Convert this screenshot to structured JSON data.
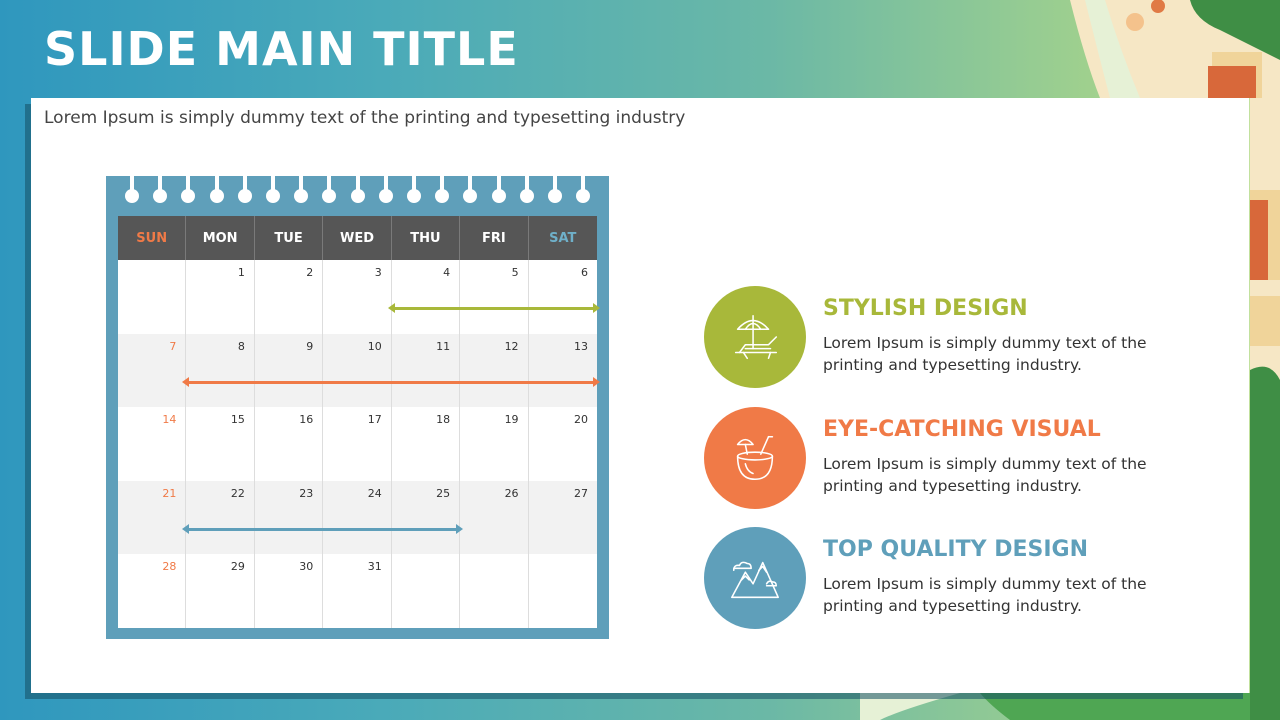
{
  "slide": {
    "title": "SLIDE MAIN TITLE",
    "subtitle": "Lorem Ipsum is simply dummy text of the printing and typesetting industry"
  },
  "calendar": {
    "days": [
      "SUN",
      "MON",
      "TUE",
      "WED",
      "THU",
      "FRI",
      "SAT"
    ],
    "weeks": [
      [
        "",
        "1",
        "2",
        "3",
        "4",
        "5",
        "6"
      ],
      [
        "7",
        "8",
        "9",
        "10",
        "11",
        "12",
        "13"
      ],
      [
        "14",
        "15",
        "16",
        "17",
        "18",
        "19",
        "20"
      ],
      [
        "21",
        "22",
        "23",
        "24",
        "25",
        "26",
        "27"
      ],
      [
        "28",
        "29",
        "30",
        "31",
        "",
        "",
        ""
      ]
    ],
    "spans": [
      {
        "week": 0,
        "start_day": 4,
        "end_day": 6,
        "color": "#a8b83a"
      },
      {
        "week": 1,
        "start_day": 1,
        "end_day": 6,
        "color": "#f07a47"
      },
      {
        "week": 3,
        "start_day": 1,
        "end_day": 4,
        "color": "#5f9fba"
      }
    ]
  },
  "features": [
    {
      "title": "STYLISH DESIGN",
      "body": "Lorem Ipsum is simply dummy text of the printing and typesetting industry.",
      "color": "#a8b83a",
      "icon": "beach-chair-umbrella-icon"
    },
    {
      "title": "EYE-CATCHING VISUAL",
      "body": "Lorem Ipsum is simply dummy text of the printing and typesetting industry.",
      "color": "#f07a47",
      "icon": "coconut-drink-icon"
    },
    {
      "title": "TOP QUALITY DESIGN",
      "body": "Lorem Ipsum is simply dummy text of the printing and typesetting industry.",
      "color": "#5f9fba",
      "icon": "mountains-icon"
    }
  ],
  "colors": {
    "accent_green": "#a8b83a",
    "accent_orange": "#f07a47",
    "accent_blue": "#5f9fba",
    "header_gray": "#565656"
  }
}
